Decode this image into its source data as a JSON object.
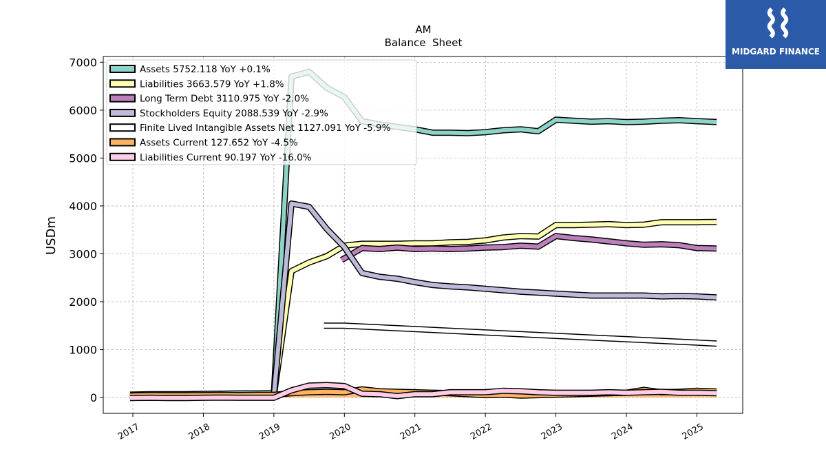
{
  "chart_data": {
    "type": "line",
    "title": "AM",
    "subtitle": "Balance  Sheet",
    "ylabel": "USDm",
    "xlabel": "",
    "ylim": [
      -330,
      7120
    ],
    "xlim": [
      2016.58,
      2025.65
    ],
    "yticks": [
      0,
      1000,
      2000,
      3000,
      4000,
      5000,
      6000,
      7000
    ],
    "xticks": [
      2017,
      2018,
      2019,
      2020,
      2021,
      2022,
      2023,
      2024,
      2025
    ],
    "grid": true,
    "legend_position": "top-left",
    "series": [
      {
        "name": "Assets  5752.118 YoY +0.1%",
        "color": "#8dd3c7",
        "x": [
          2016.96,
          2017.25,
          2017.5,
          2017.75,
          2018.0,
          2018.25,
          2018.5,
          2018.75,
          2019.0,
          2019.25,
          2019.5,
          2019.75,
          2020.0,
          2020.25,
          2020.5,
          2020.75,
          2021.0,
          2021.25,
          2021.5,
          2021.75,
          2022.0,
          2022.25,
          2022.5,
          2022.75,
          2023.0,
          2023.25,
          2023.5,
          2023.75,
          2024.0,
          2024.25,
          2024.5,
          2024.75,
          2025.0,
          2025.28
        ],
        "y": [
          60,
          70,
          70,
          70,
          75,
          80,
          85,
          85,
          90,
          6700,
          6800,
          6470,
          6270,
          5770,
          5700,
          5650,
          5600,
          5530,
          5530,
          5520,
          5540,
          5580,
          5600,
          5560,
          5800,
          5780,
          5760,
          5770,
          5750,
          5760,
          5780,
          5790,
          5770,
          5752
        ]
      },
      {
        "name": "Liabilities  3663.579 YoY +1.8%",
        "color": "#ffffb3",
        "x": [
          2016.96,
          2017.25,
          2017.5,
          2017.75,
          2018.0,
          2018.25,
          2018.5,
          2018.75,
          2019.0,
          2019.25,
          2019.5,
          2019.75,
          2020.0,
          2020.25,
          2020.5,
          2020.75,
          2021.0,
          2021.25,
          2021.5,
          2021.75,
          2022.0,
          2022.25,
          2022.5,
          2022.75,
          2023.0,
          2023.25,
          2023.5,
          2023.75,
          2024.0,
          2024.25,
          2024.5,
          2024.75,
          2025.0,
          2025.28
        ],
        "y": [
          20,
          25,
          25,
          25,
          30,
          35,
          35,
          40,
          40,
          2640,
          2820,
          2950,
          3170,
          3210,
          3210,
          3210,
          3220,
          3220,
          3240,
          3250,
          3280,
          3340,
          3370,
          3360,
          3600,
          3600,
          3610,
          3620,
          3600,
          3610,
          3660,
          3660,
          3660,
          3664
        ]
      },
      {
        "name": "Long Term Debt  3110.975 YoY -2.0%",
        "color": "#bc80bd",
        "x": [
          2019.96,
          2020.25,
          2020.5,
          2020.75,
          2021.0,
          2021.25,
          2021.5,
          2021.75,
          2022.0,
          2022.25,
          2022.5,
          2022.75,
          2023.0,
          2023.25,
          2023.5,
          2023.75,
          2024.0,
          2024.25,
          2024.5,
          2024.75,
          2025.0,
          2025.28
        ],
        "y": [
          2870,
          3120,
          3100,
          3130,
          3100,
          3110,
          3100,
          3110,
          3130,
          3140,
          3170,
          3150,
          3370,
          3330,
          3300,
          3260,
          3220,
          3190,
          3200,
          3180,
          3120,
          3111
        ]
      },
      {
        "name": "Stockholders Equity  2088.539 YoY -2.9%",
        "color": "#bebada",
        "x": [
          2016.96,
          2017.25,
          2017.5,
          2017.75,
          2018.0,
          2018.25,
          2018.5,
          2018.75,
          2019.0,
          2019.25,
          2019.5,
          2019.75,
          2020.0,
          2020.25,
          2020.5,
          2020.75,
          2021.0,
          2021.25,
          2021.5,
          2021.75,
          2022.0,
          2022.25,
          2022.5,
          2022.75,
          2023.0,
          2023.25,
          2023.5,
          2023.75,
          2024.0,
          2024.25,
          2024.5,
          2024.75,
          2025.0,
          2025.28
        ],
        "y": [
          40,
          45,
          45,
          45,
          45,
          50,
          50,
          50,
          50,
          4050,
          3980,
          3520,
          3140,
          2600,
          2520,
          2480,
          2410,
          2350,
          2320,
          2300,
          2270,
          2240,
          2210,
          2190,
          2170,
          2150,
          2130,
          2130,
          2130,
          2130,
          2110,
          2120,
          2110,
          2089
        ]
      },
      {
        "name": "Finite Lived Intangible Assets Net  1127.091 YoY -5.9%",
        "color": "#ffffff",
        "x": [
          2019.71,
          2020.0,
          2025.28
        ],
        "y": [
          1500,
          1500,
          1127
        ]
      },
      {
        "name": "Assets Current  127.652 YoY -4.5%",
        "color": "#fdb462",
        "x": [
          2016.96,
          2017.25,
          2017.5,
          2017.75,
          2018.0,
          2018.25,
          2018.5,
          2018.75,
          2019.0,
          2019.25,
          2019.5,
          2019.75,
          2020.0,
          2020.25,
          2020.5,
          2020.75,
          2021.0,
          2021.25,
          2021.5,
          2021.75,
          2022.0,
          2022.25,
          2022.5,
          2022.75,
          2023.0,
          2023.25,
          2023.5,
          2023.75,
          2024.0,
          2024.25,
          2024.5,
          2024.75,
          2025.0,
          2025.28
        ],
        "y": [
          40,
          50,
          45,
          45,
          50,
          55,
          50,
          55,
          55,
          90,
          110,
          120,
          110,
          170,
          130,
          120,
          110,
          100,
          90,
          70,
          50,
          60,
          40,
          50,
          60,
          70,
          80,
          90,
          100,
          160,
          110,
          120,
          140,
          128
        ]
      },
      {
        "name": "Liabilities Current  90.197 YoY -16.0%",
        "color": "#fccde5",
        "x": [
          2016.96,
          2017.25,
          2017.5,
          2017.75,
          2018.0,
          2018.25,
          2018.5,
          2018.75,
          2019.0,
          2019.25,
          2019.5,
          2019.75,
          2020.0,
          2020.25,
          2020.5,
          2020.75,
          2021.0,
          2021.25,
          2021.5,
          2021.75,
          2022.0,
          2022.25,
          2022.5,
          2022.75,
          2023.0,
          2023.25,
          2023.5,
          2023.75,
          2024.0,
          2024.25,
          2024.5,
          2024.75,
          2025.0,
          2025.28
        ],
        "y": [
          -10,
          -5,
          -10,
          -10,
          -5,
          0,
          -5,
          -5,
          -5,
          150,
          250,
          260,
          240,
          80,
          70,
          30,
          70,
          70,
          110,
          110,
          110,
          140,
          130,
          110,
          100,
          100,
          100,
          110,
          100,
          110,
          120,
          100,
          100,
          90
        ]
      }
    ]
  },
  "logo": {
    "brand_name": "MIDGARD FINANCE"
  }
}
